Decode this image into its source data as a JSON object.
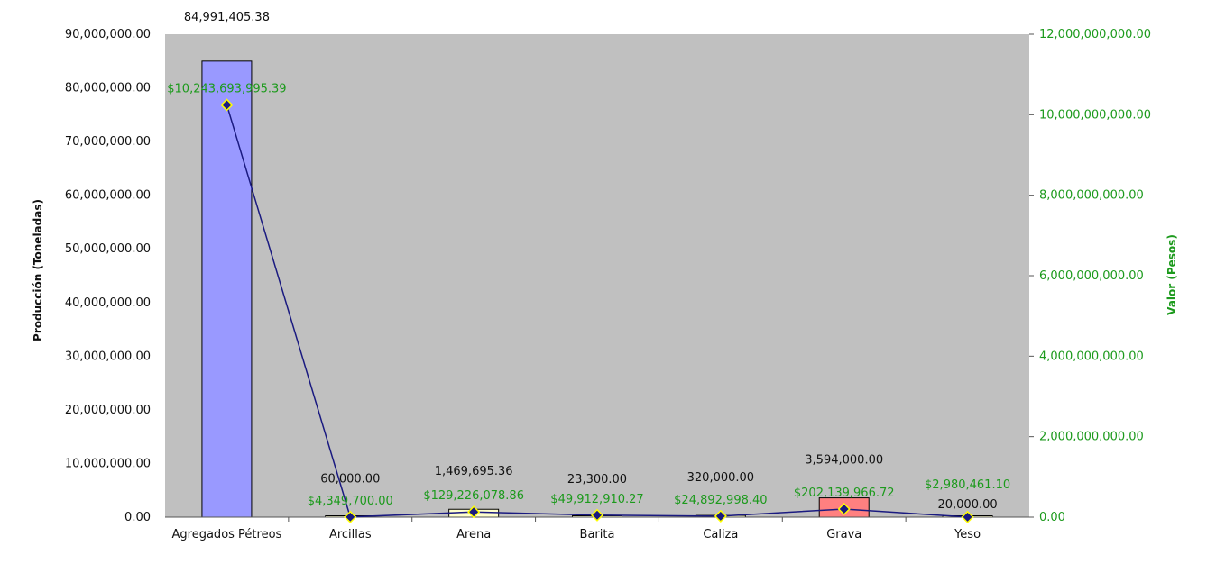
{
  "chart_data": {
    "type": "bar",
    "categories": [
      "Agregados Pétreos",
      "Arcillas",
      "Arena",
      "Barita",
      "Caliza",
      "Grava",
      "Yeso"
    ],
    "ylabel": "Producción (Toneladas)",
    "y2label": "Valor (Pesos)",
    "ylim": [
      0,
      90000000
    ],
    "y2lim": [
      0,
      12000000000
    ],
    "yticks": [
      "0.00",
      "10,000,000.00",
      "20,000,000.00",
      "30,000,000.00",
      "40,000,000.00",
      "50,000,000.00",
      "60,000,000.00",
      "70,000,000.00",
      "80,000,000.00",
      "90,000,000.00"
    ],
    "y2ticks": [
      "0.00",
      "2,000,000,000.00",
      "4,000,000,000.00",
      "6,000,000,000.00",
      "8,000,000,000.00",
      "10,000,000,000.00",
      "12,000,000,000.00"
    ],
    "bar_series": {
      "values": [
        84991405.38,
        60000,
        1469695.36,
        23300,
        320000,
        3594000,
        20000
      ],
      "labels": [
        "84,991,405.38",
        "60,000.00",
        "1,469,695.36",
        "23,300.00",
        "320,000.00",
        "3,594,000.00",
        "20,000.00"
      ],
      "colors": [
        "#9999ff",
        "#ffffcc",
        "#ffffcc",
        "#ffffcc",
        "#ffffcc",
        "#ff8080",
        "#ffffcc"
      ]
    },
    "line_series": {
      "axis": "right",
      "values": [
        10243693995.39,
        4349700,
        129226078.86,
        49912910.27,
        24892998.4,
        202139966.72,
        2980461.1
      ],
      "labels": [
        "$10,243,693,995.39",
        "$4,349,700.00",
        "$129,226,078.86",
        "$49,912,910.27",
        "$24,892,998.40",
        "$202,139,966.72",
        "$2,980,461.10"
      ],
      "color": "#1a1a80",
      "marker_color": "#ffff00"
    },
    "grid": false,
    "plot_background": "#c0c0c0"
  }
}
